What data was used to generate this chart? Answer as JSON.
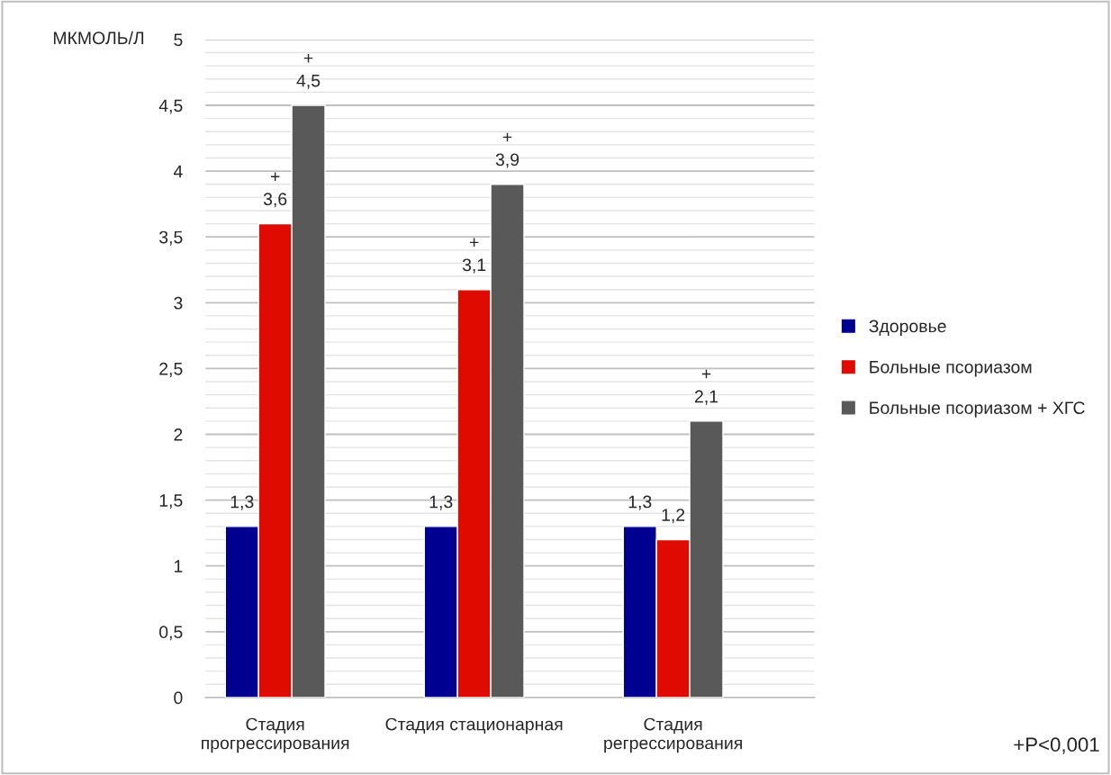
{
  "chart_data": {
    "type": "bar",
    "ylabel": "МКМОЛЬ/Л",
    "categories": [
      "Стадия прогрессирования",
      "Стадия стационарная",
      "Стадия регрессирования"
    ],
    "series": [
      {
        "name": "Здоровье",
        "color": "#000090",
        "values": [
          1.3,
          1.3,
          1.3
        ],
        "value_labels": [
          "1,3",
          "1,3",
          "1,3"
        ]
      },
      {
        "name": "Больные псориазом",
        "color": "#e00b00",
        "values": [
          3.6,
          3.1,
          1.2
        ],
        "value_labels": [
          "+\n3,6",
          "+\n3,1",
          "1,2"
        ]
      },
      {
        "name": "Больные псориазом + ХГС",
        "color": "#595959",
        "values": [
          4.5,
          3.9,
          2.1
        ],
        "value_labels": [
          "+\n4,5",
          "+\n3,9",
          "+\n2,1"
        ]
      }
    ],
    "ylim": [
      0,
      5
    ],
    "yticks": [
      0,
      {
        "value": 0.1,
        "label": null
      },
      {
        "value": 0.2,
        "label": null
      },
      {
        "value": 0.3,
        "label": null
      },
      {
        "value": 0.4,
        "label": null
      },
      {
        "value": 0.5,
        "label": "0,5"
      },
      {
        "value": 0.6,
        "label": null
      },
      {
        "value": 0.7,
        "label": null
      },
      {
        "value": 0.8,
        "label": null
      },
      {
        "value": 0.9,
        "label": null
      },
      1,
      {
        "value": 1.1,
        "label": null
      },
      {
        "value": 1.2,
        "label": null
      },
      {
        "value": 1.3,
        "label": null
      },
      {
        "value": 1.4,
        "label": null
      },
      {
        "value": 1.5,
        "label": "1,5"
      },
      {
        "value": 1.6,
        "label": null
      },
      {
        "value": 1.7,
        "label": null
      },
      {
        "value": 1.8,
        "label": null
      },
      {
        "value": 1.9,
        "label": null
      },
      2,
      {
        "value": 2.1,
        "label": null
      },
      {
        "value": 2.2,
        "label": null
      },
      {
        "value": 2.3,
        "label": null
      },
      {
        "value": 2.4,
        "label": null
      },
      {
        "value": 2.5,
        "label": "2,5"
      },
      {
        "value": 2.6,
        "label": null
      },
      {
        "value": 2.7,
        "label": null
      },
      {
        "value": 2.8,
        "label": null
      },
      {
        "value": 2.9,
        "label": null
      },
      3,
      {
        "value": 3.1,
        "label": null
      },
      {
        "value": 3.2,
        "label": null
      },
      {
        "value": 3.3,
        "label": null
      },
      {
        "value": 3.4,
        "label": null
      },
      {
        "value": 3.5,
        "label": "3,5"
      },
      {
        "value": 3.6,
        "label": null
      },
      {
        "value": 3.7,
        "label": null
      },
      {
        "value": 3.8,
        "label": null
      },
      {
        "value": 3.9,
        "label": null
      },
      4,
      {
        "value": 4.1,
        "label": null
      },
      {
        "value": 4.2,
        "label": null
      },
      {
        "value": 4.3,
        "label": null
      },
      {
        "value": 4.4,
        "label": null
      },
      {
        "value": 4.5,
        "label": "4,5"
      },
      {
        "value": 4.6,
        "label": null
      },
      {
        "value": 4.7,
        "label": null
      },
      {
        "value": 4.8,
        "label": null
      },
      {
        "value": 4.9,
        "label": null
      },
      5
    ],
    "grid": "y",
    "legend": "right",
    "annotations": [
      "+P<0,001"
    ]
  }
}
